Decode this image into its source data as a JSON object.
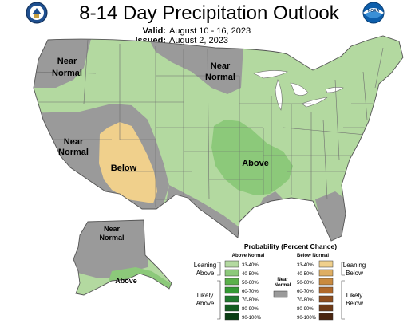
{
  "header": {
    "title": "8-14 Day Precipitation Outlook",
    "valid_label": "Valid:",
    "valid_dates": "August 10 - 16, 2023",
    "issued_label": "Issued:",
    "issued_date": "August 2, 2023",
    "noaa_logo_text": "NOAA"
  },
  "map": {
    "region_labels": {
      "nw_near_normal_1": "Near",
      "nw_near_normal_2": "Normal",
      "mt_near_normal_1": "Near",
      "mt_near_normal_2": "Normal",
      "w_near_normal_1": "Near",
      "w_near_normal_2": "Normal",
      "sw_below": "Below",
      "central_above": "Above",
      "ak_near_normal_1": "Near",
      "ak_near_normal_2": "Normal",
      "ak_above": "Above"
    }
  },
  "legend": {
    "title": "Probability (Percent Chance)",
    "above_header": "Above Normal",
    "below_header": "Below Normal",
    "near_normal_1": "Near",
    "near_normal_2": "Normal",
    "leaning_above_1": "Leaning",
    "leaning_above_2": "Above",
    "likely_above_1": "Likely",
    "likely_above_2": "Above",
    "leaning_below_1": "Leaning",
    "leaning_below_2": "Below",
    "likely_below_1": "Likely",
    "likely_below_2": "Below",
    "ranges": [
      "33-40%",
      "40-50%",
      "50-60%",
      "60-70%",
      "70-80%",
      "80-90%",
      "90-100%"
    ],
    "above_colors": [
      "#b3d9a0",
      "#8cc97a",
      "#5ab04a",
      "#339933",
      "#1f7a2e",
      "#125c20",
      "#0a3d14"
    ],
    "below_colors": [
      "#f0d08c",
      "#deae63",
      "#c98a3f",
      "#b0682a",
      "#8f4e1f",
      "#6e3a17",
      "#4a2510"
    ],
    "near_normal_color": "#9a9a9a"
  },
  "colors": {
    "near_normal": "#9a9a9a",
    "below": "#f0d08c",
    "above_light": "#b3d9a0",
    "above_mid": "#8cc97a",
    "state_lines": "#6e6e6e"
  }
}
